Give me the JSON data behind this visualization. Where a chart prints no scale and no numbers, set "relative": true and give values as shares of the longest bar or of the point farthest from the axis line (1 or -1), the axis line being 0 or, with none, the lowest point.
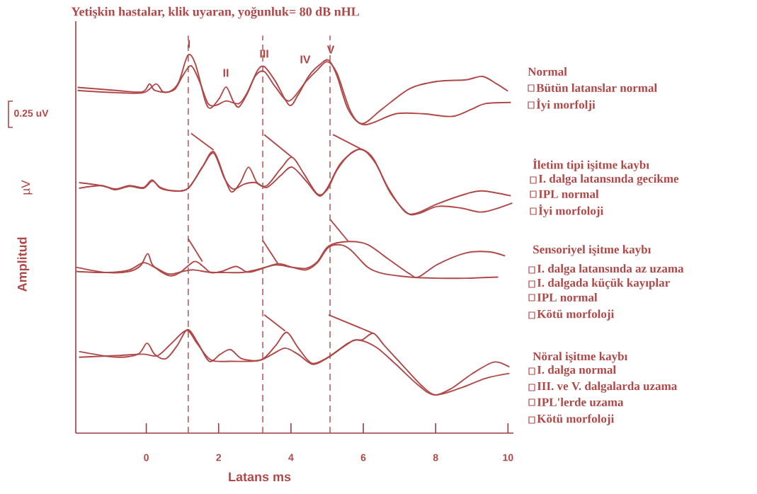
{
  "chart_data": {
    "type": "line",
    "relative": true,
    "title": "Yetişkin hastalar, klik uyaran, yoğunluk= 80 dB nHL",
    "xlabel": "Latans ms",
    "ylabel": "Amplitud",
    "xlim": [
      -1.95,
      10.15
    ],
    "xticks": [
      0,
      2,
      4,
      6,
      8,
      10
    ],
    "grid": false,
    "series": [
      {
        "color": "#b04848",
        "x": [
          -1.9,
          -0.85,
          -0.12,
          0.09,
          0.23,
          0.62,
          0.89,
          1.15,
          1.36,
          1.63,
          1.78,
          2.02,
          2.21,
          2.4,
          2.56,
          2.79,
          3.06,
          3.26,
          3.57,
          3.95,
          4.19,
          4.5,
          4.81,
          5.04,
          5.27,
          5.58,
          5.97,
          6.51,
          7.29,
          8.06,
          8.84,
          9.3,
          9.69,
          10.0
        ],
        "values": [
          0.915,
          0.907,
          0.903,
          0.924,
          0.907,
          0.903,
          0.927,
          1.0,
          0.976,
          0.879,
          0.86,
          0.886,
          0.916,
          0.879,
          0.863,
          0.898,
          0.957,
          0.97,
          0.931,
          0.868,
          0.894,
          0.946,
          0.976,
          0.987,
          0.946,
          0.857,
          0.819,
          0.857,
          0.912,
          0.931,
          0.935,
          0.944,
          0.924,
          0.905
        ]
      },
      {
        "color": "#b04848",
        "x": [
          -1.9,
          -0.85,
          -0.08,
          0.27,
          0.47,
          0.78,
          1.01,
          1.24,
          1.47,
          1.71,
          1.94,
          2.21,
          2.56,
          2.79,
          3.02,
          3.26,
          3.57,
          3.95,
          4.42,
          4.73,
          5.0,
          5.27,
          5.66,
          6.05,
          6.9,
          7.67,
          8.45,
          8.99,
          9.38,
          10.08
        ],
        "values": [
          0.907,
          0.901,
          0.901,
          0.924,
          0.903,
          0.909,
          0.946,
          0.972,
          0.931,
          0.872,
          0.868,
          0.879,
          0.872,
          0.901,
          0.946,
          0.957,
          0.916,
          0.879,
          0.931,
          0.961,
          0.983,
          0.953,
          0.849,
          0.816,
          0.845,
          0.845,
          0.838,
          0.857,
          0.872,
          0.875
        ]
      },
      {
        "color": "#b04848",
        "x": [
          -1.86,
          -1.24,
          -0.85,
          -0.47,
          -0.08,
          0.16,
          0.39,
          0.78,
          1.16,
          1.55,
          1.86,
          2.17,
          2.36,
          2.6,
          2.83,
          3.06,
          3.33,
          3.72,
          4.03,
          4.34,
          4.73,
          5.0,
          5.27,
          5.66,
          5.97,
          6.28,
          6.67,
          7.13,
          7.44,
          8.06,
          8.84,
          9.3,
          10.08
        ],
        "values": [
          0.663,
          0.655,
          0.646,
          0.655,
          0.65,
          0.67,
          0.648,
          0.641,
          0.648,
          0.704,
          0.745,
          0.674,
          0.638,
          0.663,
          0.704,
          0.663,
          0.655,
          0.7,
          0.73,
          0.689,
          0.633,
          0.644,
          0.696,
          0.741,
          0.75,
          0.726,
          0.652,
          0.588,
          0.581,
          0.607,
          0.633,
          0.641,
          0.628
        ]
      },
      {
        "color": "#b04848",
        "x": [
          -1.86,
          -1.24,
          -0.85,
          -0.47,
          -0.08,
          0.17,
          0.39,
          0.78,
          1.16,
          1.55,
          1.86,
          2.16,
          2.4,
          2.71,
          3.02,
          3.33,
          3.72,
          4.03,
          4.42,
          4.77,
          5.0,
          5.35,
          5.74,
          6.01,
          6.36,
          6.74,
          7.21,
          7.52,
          8.06,
          8.68,
          9.22,
          9.61,
          10.12
        ],
        "values": [
          0.648,
          0.655,
          0.644,
          0.653,
          0.648,
          0.667,
          0.65,
          0.641,
          0.648,
          0.704,
          0.741,
          0.674,
          0.646,
          0.659,
          0.663,
          0.65,
          0.682,
          0.704,
          0.667,
          0.628,
          0.648,
          0.711,
          0.745,
          0.749,
          0.711,
          0.637,
          0.583,
          0.581,
          0.6,
          0.596,
          0.585,
          0.592,
          0.609
        ]
      },
      {
        "color": "#b04848",
        "x": [
          -1.94,
          -1.09,
          -0.47,
          -0.16,
          0.04,
          0.19,
          0.62,
          0.93,
          1.32,
          1.55,
          1.78,
          2.09,
          2.48,
          2.79,
          3.1,
          3.64,
          4.03,
          4.42,
          4.73,
          5.04,
          5.39,
          5.66,
          6.12,
          6.51,
          7.29,
          8.06,
          8.84,
          9.73
        ],
        "values": [
          0.439,
          0.425,
          0.428,
          0.443,
          0.475,
          0.443,
          0.417,
          0.425,
          0.454,
          0.443,
          0.425,
          0.428,
          0.441,
          0.426,
          0.432,
          0.448,
          0.439,
          0.432,
          0.451,
          0.492,
          0.498,
          0.484,
          0.439,
          0.423,
          0.413,
          0.41,
          0.41,
          0.413
        ]
      },
      {
        "color": "#b04848",
        "x": [
          -1.94,
          -1.09,
          -0.47,
          -0.08,
          0.23,
          0.62,
          1.01,
          1.32,
          1.71,
          2.09,
          2.64,
          3.02,
          3.57,
          4.03,
          4.42,
          4.73,
          5.04,
          5.58,
          6.12,
          6.67,
          7.29,
          7.52,
          8.06,
          8.84,
          9.46,
          9.92
        ],
        "values": [
          0.428,
          0.425,
          0.432,
          0.451,
          0.439,
          0.421,
          0.428,
          0.432,
          0.426,
          0.425,
          0.425,
          0.432,
          0.445,
          0.439,
          0.436,
          0.454,
          0.495,
          0.507,
          0.499,
          0.462,
          0.421,
          0.413,
          0.447,
          0.477,
          0.48,
          0.469
        ]
      },
      {
        "color": "#b04848",
        "x": [
          -1.86,
          -0.85,
          -0.23,
          0.02,
          0.23,
          0.54,
          0.85,
          1.14,
          1.43,
          1.74,
          2.05,
          2.33,
          2.64,
          3.18,
          3.57,
          3.88,
          4.19,
          4.57,
          4.96,
          5.43,
          5.74,
          5.97,
          6.28,
          6.59,
          7.13,
          7.6,
          7.98,
          8.45,
          8.99,
          9.61,
          10.04
        ],
        "values": [
          0.216,
          0.201,
          0.209,
          0.238,
          0.209,
          0.197,
          0.231,
          0.274,
          0.238,
          0.19,
          0.209,
          0.221,
          0.197,
          0.194,
          0.231,
          0.267,
          0.227,
          0.185,
          0.197,
          0.227,
          0.246,
          0.247,
          0.264,
          0.231,
          0.175,
          0.127,
          0.101,
          0.119,
          0.156,
          0.188,
          0.175
        ]
      },
      {
        "color": "#b04848",
        "x": [
          -1.86,
          -0.85,
          -0.08,
          0.31,
          0.7,
          1.12,
          1.4,
          1.78,
          2.33,
          3.1,
          3.49,
          3.84,
          4.19,
          4.61,
          5.04,
          5.58,
          5.89,
          6.36,
          6.9,
          7.52,
          7.98,
          8.68,
          9.38,
          10.04
        ],
        "values": [
          0.201,
          0.205,
          0.209,
          0.205,
          0.238,
          0.272,
          0.238,
          0.194,
          0.19,
          0.192,
          0.209,
          0.225,
          0.209,
          0.182,
          0.201,
          0.238,
          0.246,
          0.227,
          0.182,
          0.127,
          0.101,
          0.119,
          0.145,
          0.158
        ]
      },
      {
        "color": "#b04848",
        "x": [
          1.24,
          1.86
        ],
        "values": [
          0.793,
          0.749
        ]
      },
      {
        "color": "#b04848",
        "x": [
          3.26,
          4.03
        ],
        "values": [
          0.79,
          0.73
        ]
      },
      {
        "color": "#b04848",
        "x": [
          5.16,
          5.93
        ],
        "values": [
          0.79,
          0.752
        ]
      },
      {
        "color": "#b04848",
        "x": [
          1.16,
          1.55
        ],
        "values": [
          0.514,
          0.454
        ]
      },
      {
        "color": "#b04848",
        "x": [
          3.22,
          3.64
        ],
        "values": [
          0.51,
          0.448
        ]
      },
      {
        "color": "#b04848",
        "x": [
          5.08,
          5.58
        ],
        "values": [
          0.566,
          0.508
        ]
      },
      {
        "color": "#b04848",
        "x": [
          3.26,
          3.84
        ],
        "values": [
          0.313,
          0.27
        ]
      },
      {
        "color": "#b04848",
        "x": [
          5.04,
          6.28
        ],
        "values": [
          0.313,
          0.264
        ]
      }
    ],
    "ref_lines": [
      {
        "axis": "x",
        "value": 1.16,
        "line_style": "dashed",
        "color": "#b04848"
      },
      {
        "axis": "x",
        "value": 3.22,
        "line_style": "dashed",
        "color": "#b04848"
      },
      {
        "axis": "x",
        "value": 5.08,
        "line_style": "dashed",
        "color": "#b04848"
      }
    ],
    "annotations": [
      {
        "text": "I",
        "x": 1.18,
        "y": 1.03
      },
      "II",
      {
        "text": "III",
        "x": 3.26,
        "y": 1.004
      },
      "IV",
      {
        "text": "V",
        "x": 5.1,
        "y": 1.015
      },
      "0.25 uV",
      "µV",
      "Normal",
      "Bütün latanslar normal",
      "İyi morfolji",
      "İletim tipi işitme kaybı",
      "I. dalga latansında gecikme",
      "IPL normal",
      "İyi morfoloji",
      "Sensoriyel işitme kaybı",
      "I. dalga latansında az uzama",
      "I. dalgada küçük kayıplar",
      "IPL normal",
      "Kötü morfoloji",
      "Nöral işitme kaybı",
      "I. dalga normal",
      "III. ve V. dalgalarda uzama",
      "IPL'lerde uzama",
      "Kötü morfoloji"
    ]
  }
}
